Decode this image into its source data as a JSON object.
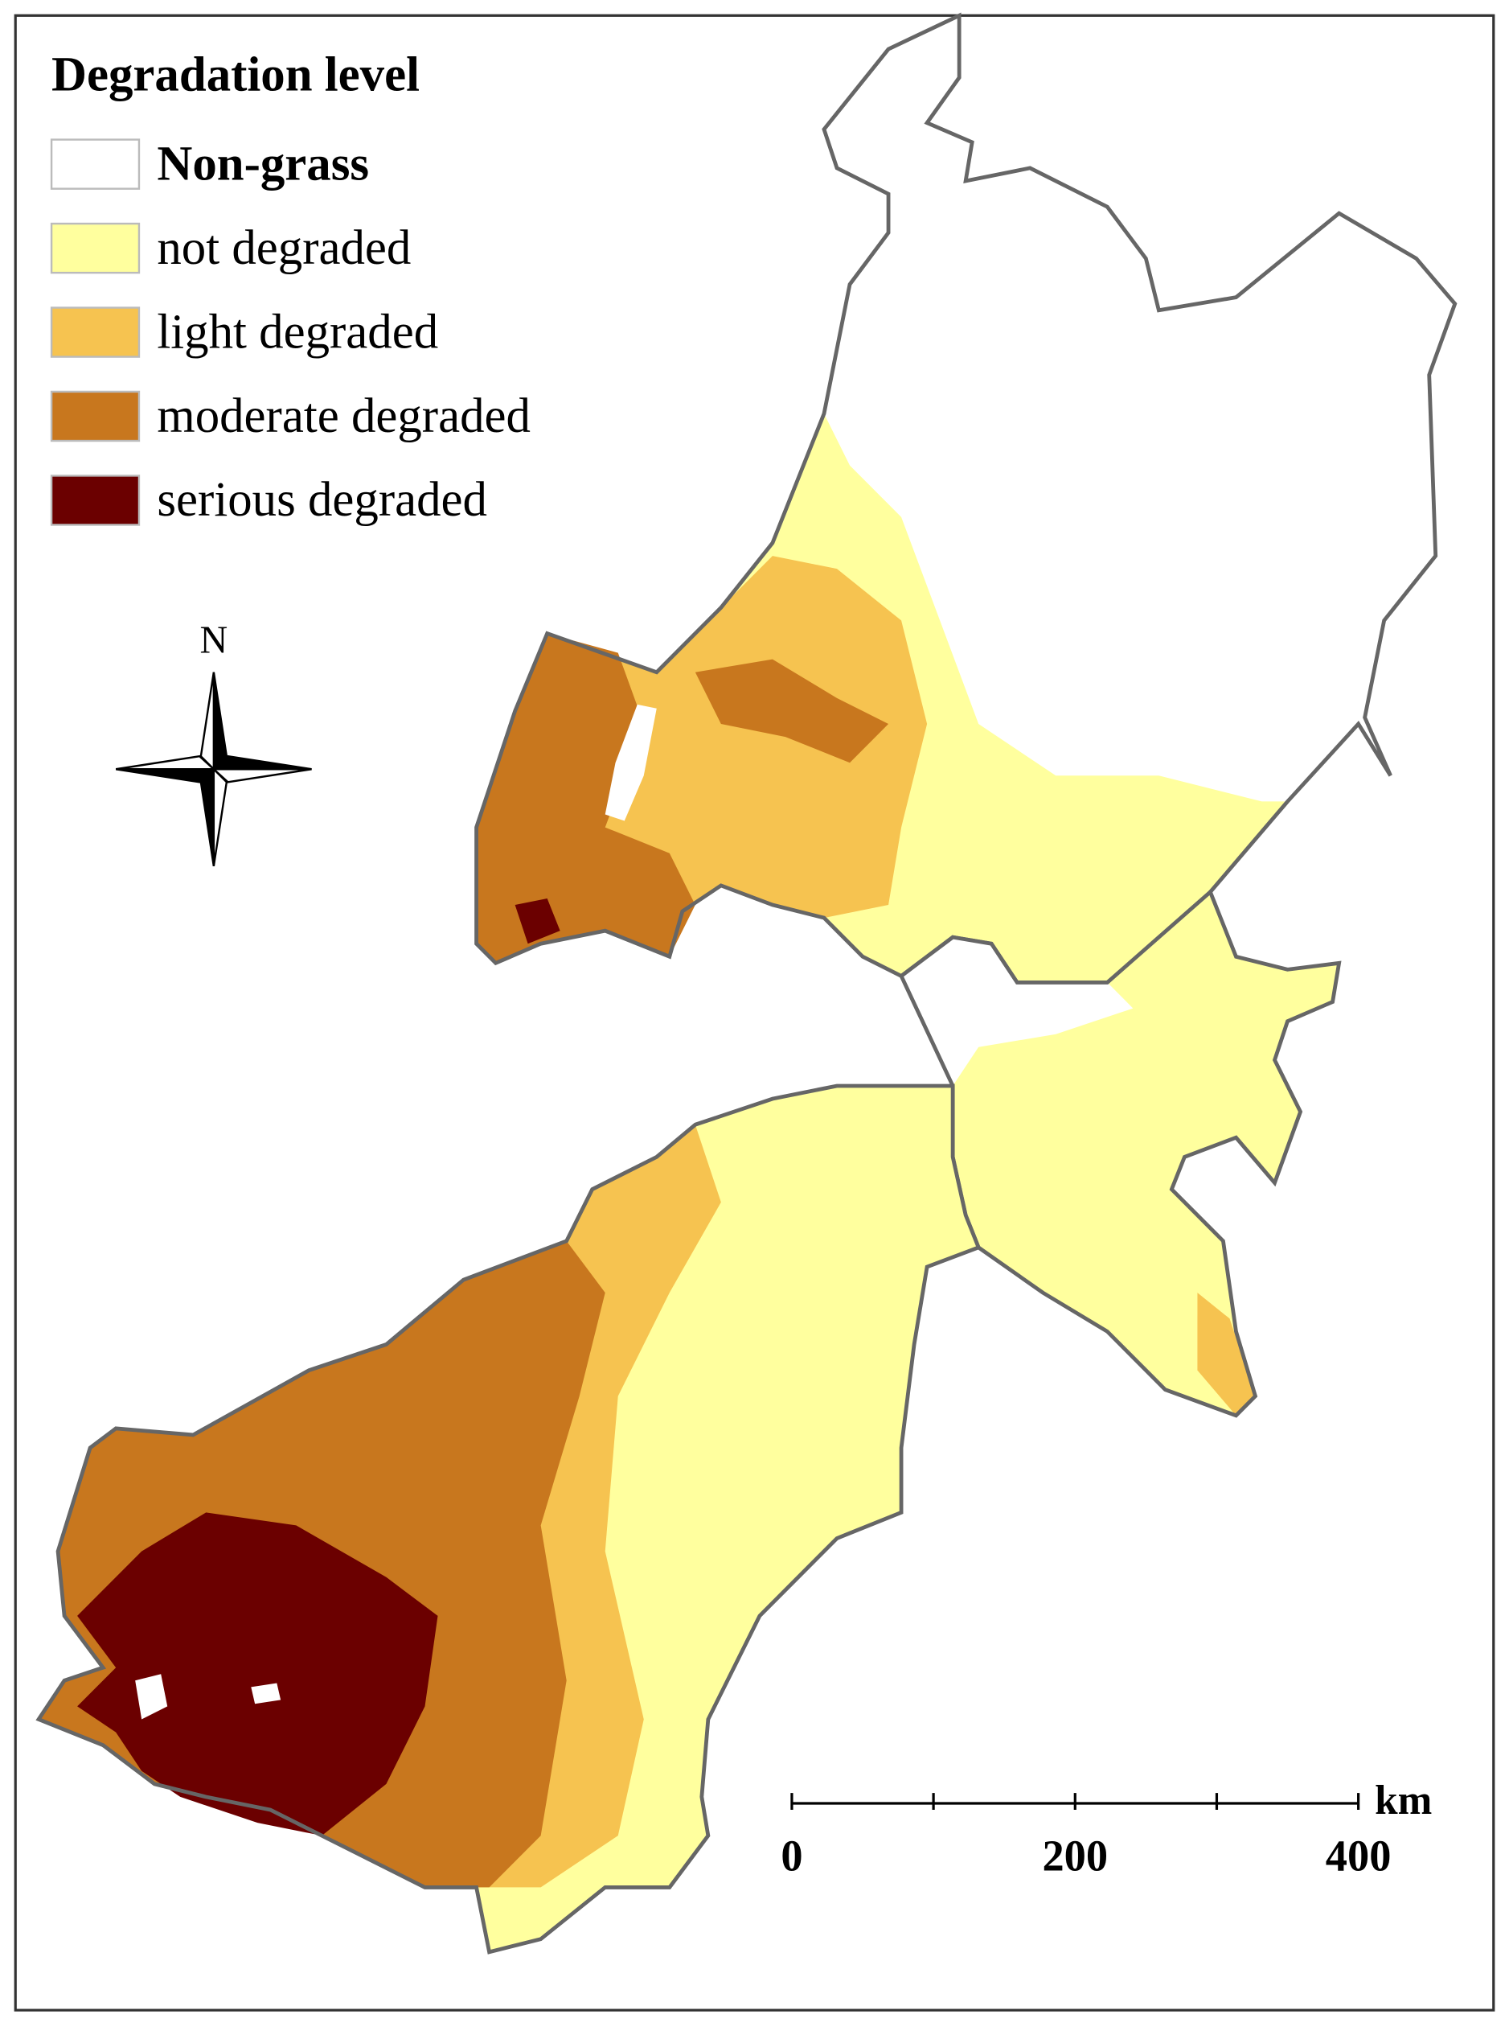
{
  "legend": {
    "title": "Degradation level",
    "items": [
      {
        "label": "Non-grass",
        "color": "#ffffff"
      },
      {
        "label": "not degraded",
        "color": "#ffff9e"
      },
      {
        "label": "light degraded",
        "color": "#f6c350"
      },
      {
        "label": "moderate degraded",
        "color": "#c8771e"
      },
      {
        "label": "serious degraded",
        "color": "#6b0000"
      }
    ]
  },
  "north_arrow": {
    "label": "N"
  },
  "scale_bar": {
    "unit": "km",
    "labels": [
      "0",
      "200",
      "400"
    ]
  }
}
